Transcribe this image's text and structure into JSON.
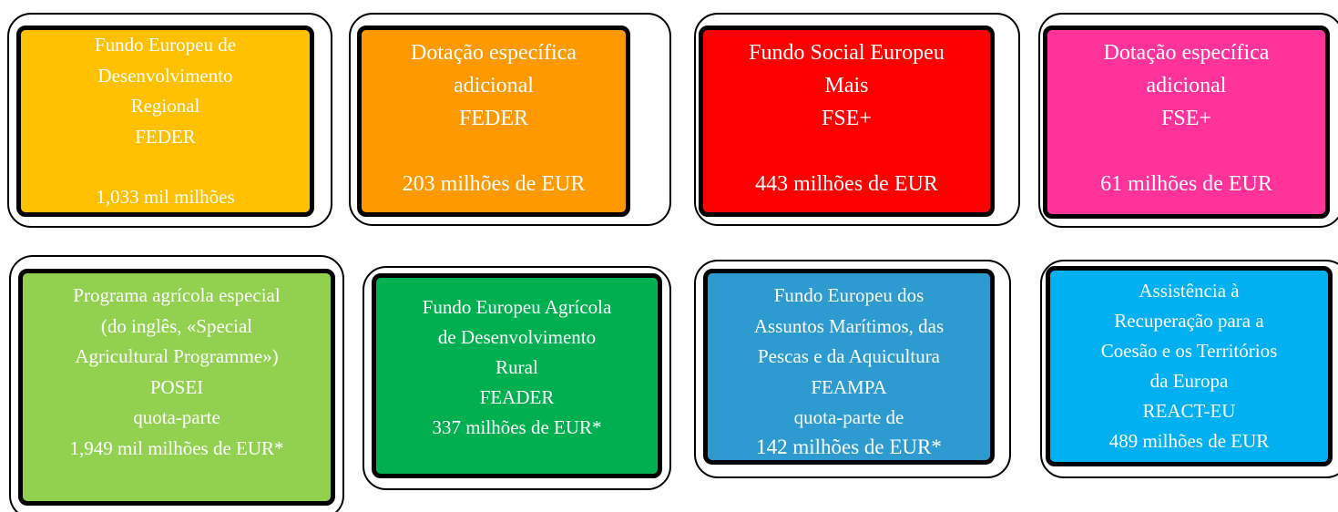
{
  "cards": [
    {
      "color": "#FFC000",
      "lines": [
        "Fundo Europeu de",
        "Desenvolvimento",
        "Regional",
        "FEDER"
      ],
      "amount": "1,033 mil milhões"
    },
    {
      "color": "#FF9900",
      "lines": [
        "Dotação específica",
        "adicional",
        "FEDER"
      ],
      "amount": "203 milhões de EUR"
    },
    {
      "color": "#FF0000",
      "lines": [
        "Fundo Social Europeu",
        "Mais",
        "FSE+"
      ],
      "amount": "443 milhões de EUR"
    },
    {
      "color": "#FF3399",
      "lines": [
        "Dotação específica",
        "adicional",
        "FSE+"
      ],
      "amount": "61 milhões de EUR"
    },
    {
      "color": "#92D050",
      "lines": [
        "Programa agrícola especial",
        "(do inglês, «Special",
        "Agricultural Programme»)",
        "POSEI",
        "quota-parte"
      ],
      "amount": "1,949 mil milhões de EUR*"
    },
    {
      "color": "#00B050",
      "lines": [
        "Fundo Europeu Agrícola",
        "de Desenvolvimento",
        "Rural",
        "FEADER"
      ],
      "amount": "337 milhões de EUR*"
    },
    {
      "color": "#2E9BD0",
      "lines": [
        "Fundo Europeu dos",
        "Assuntos Marítimos, das",
        "Pescas e da Aquicultura",
        "FEAMPA",
        "quota-parte de"
      ],
      "amount": "142 milhões de EUR*"
    },
    {
      "color": "#00B0F0",
      "lines": [
        "Assistência à",
        "Recuperação para a",
        "Coesão e os Territórios",
        "da Europa",
        "REACT-EU"
      ],
      "amount": "489 milhões de EUR"
    }
  ]
}
